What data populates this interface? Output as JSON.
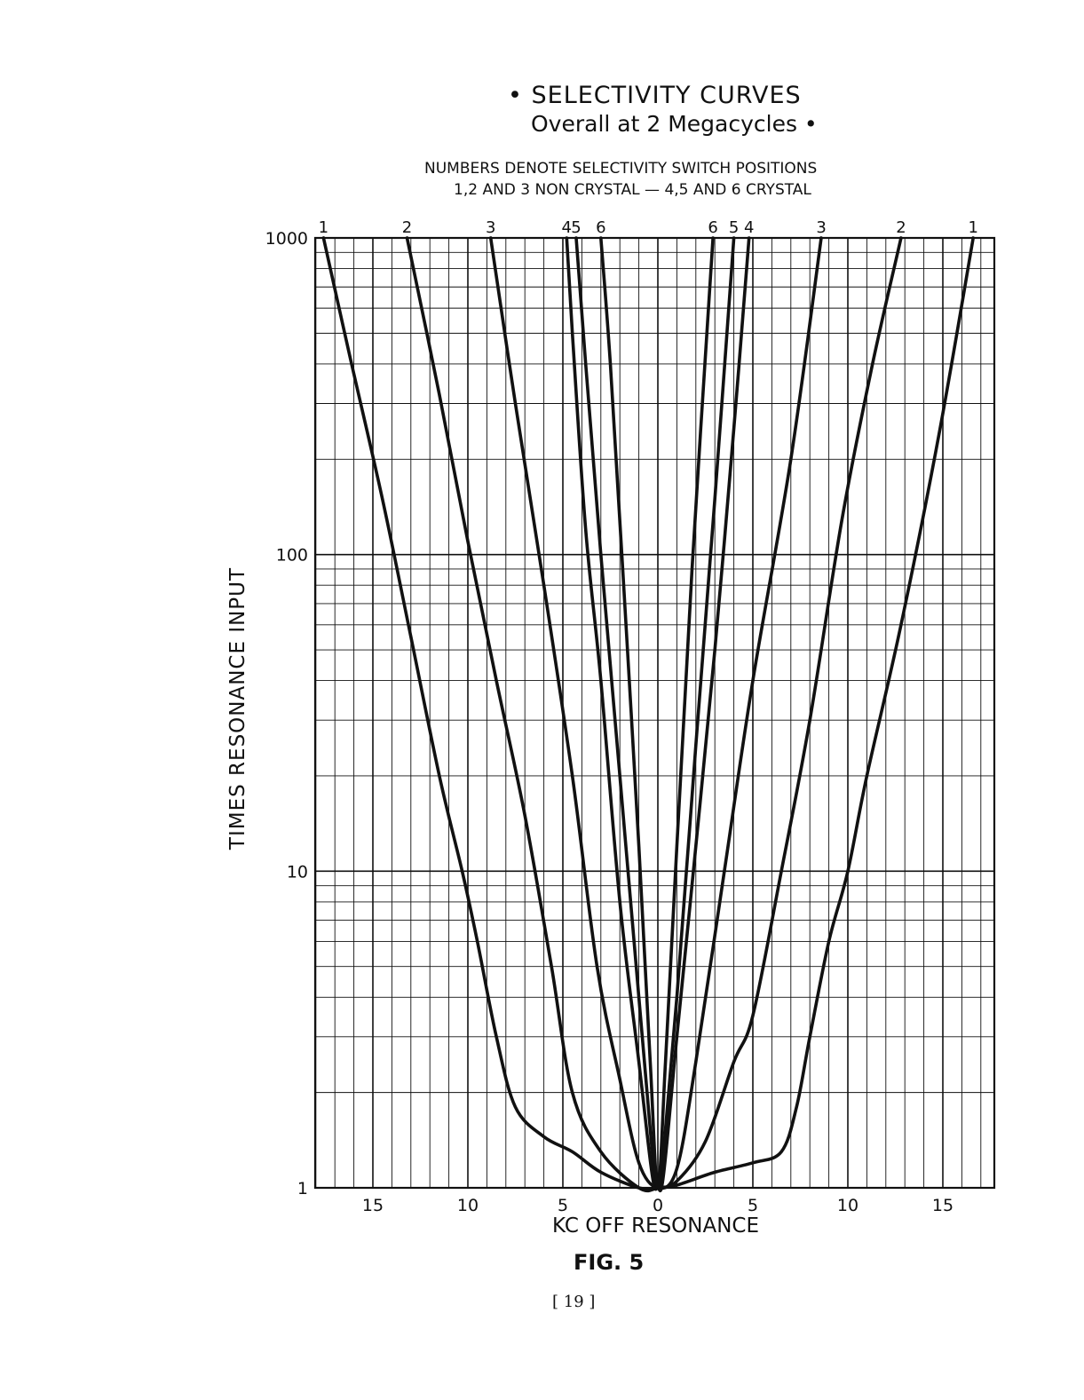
{
  "page": {
    "title_line1": "• SELECTIVITY  CURVES",
    "title_line2": "Overall  at  2  Megacycles •",
    "note_line1": "NUMBERS  DENOTE  SELECTIVITY  SWITCH  POSITIONS",
    "note_line2": "1,2 AND 3  NON CRYSTAL  —  4,5 AND 6  CRYSTAL",
    "figure_label": "FIG. 5",
    "page_number": "[ 19 ]"
  },
  "chart_data": {
    "type": "line",
    "title": "SELECTIVITY CURVES Overall at 2 Megacycles",
    "xlabel": "KC  OFF  RESONANCE",
    "ylabel": "TIMES  RESONANCE  INPUT",
    "xlim": [
      -18,
      18
    ],
    "ylim": [
      1,
      1000
    ],
    "y_scale": "log",
    "x_ticks": [
      {
        "value": -15,
        "label": "15"
      },
      {
        "value": -10,
        "label": "10"
      },
      {
        "value": -5,
        "label": "5"
      },
      {
        "value": 0,
        "label": "0"
      },
      {
        "value": 5,
        "label": "5"
      },
      {
        "value": 10,
        "label": "10"
      },
      {
        "value": 15,
        "label": "15"
      }
    ],
    "y_ticks": [
      {
        "value": 1,
        "label": "1"
      },
      {
        "value": 10,
        "label": "10"
      },
      {
        "value": 100,
        "label": "100"
      },
      {
        "value": 1000,
        "label": "1000"
      }
    ],
    "grid": true,
    "series": [
      {
        "name": "1",
        "points": [
          [
            -17.6,
            1000
          ],
          [
            -16.2,
            420
          ],
          [
            -14.5,
            150
          ],
          [
            -13,
            55
          ],
          [
            -11.5,
            20
          ],
          [
            -10.3,
            10
          ],
          [
            -9.5,
            6
          ],
          [
            -8.5,
            3
          ],
          [
            -7.5,
            1.8
          ],
          [
            -6,
            1.45
          ],
          [
            -4.5,
            1.3
          ],
          [
            -3,
            1.12
          ],
          [
            -1,
            1
          ],
          [
            0,
            1
          ],
          [
            1,
            1.02
          ],
          [
            3,
            1.12
          ],
          [
            5,
            1.2
          ],
          [
            6.5,
            1.3
          ],
          [
            7.3,
            1.8
          ],
          [
            8,
            3
          ],
          [
            9,
            6
          ],
          [
            10,
            10
          ],
          [
            11,
            20
          ],
          [
            12.8,
            60
          ],
          [
            14.8,
            240
          ],
          [
            16.6,
            1000
          ]
        ]
      },
      {
        "name": "2",
        "points": [
          [
            -13.2,
            1000
          ],
          [
            -11.5,
            320
          ],
          [
            -10,
            110
          ],
          [
            -8.5,
            40
          ],
          [
            -7,
            15
          ],
          [
            -5.6,
            5
          ],
          [
            -4.5,
            2
          ],
          [
            -3,
            1.3
          ],
          [
            -1,
            1
          ],
          [
            0,
            1
          ],
          [
            1,
            1.05
          ],
          [
            2.5,
            1.4
          ],
          [
            4,
            2.5
          ],
          [
            5,
            3.5
          ],
          [
            6.5,
            10
          ],
          [
            8,
            30
          ],
          [
            9.7,
            130
          ],
          [
            11.3,
            400
          ],
          [
            12.8,
            1000
          ]
        ]
      },
      {
        "name": "3",
        "points": [
          [
            -8.8,
            1000
          ],
          [
            -7.5,
            300
          ],
          [
            -6,
            80
          ],
          [
            -4.5,
            20
          ],
          [
            -3.2,
            5
          ],
          [
            -2,
            2.2
          ],
          [
            -1,
            1.2
          ],
          [
            0,
            1
          ],
          [
            1,
            1.15
          ],
          [
            2,
            2.5
          ],
          [
            3.5,
            10
          ],
          [
            5,
            40
          ],
          [
            7,
            200
          ],
          [
            8.6,
            1000
          ]
        ]
      },
      {
        "name": "4",
        "points": [
          [
            -4.8,
            1000
          ],
          [
            -4.5,
            500
          ],
          [
            -3.8,
            120
          ],
          [
            -3,
            40
          ],
          [
            -2,
            8
          ],
          [
            -1,
            2.5
          ],
          [
            -0.3,
            1.1
          ],
          [
            0,
            1
          ],
          [
            0.3,
            1.1
          ],
          [
            1,
            3
          ],
          [
            2,
            12
          ],
          [
            3,
            50
          ],
          [
            4,
            250
          ],
          [
            4.8,
            1000
          ]
        ]
      },
      {
        "name": "5",
        "points": [
          [
            -4.3,
            1000
          ],
          [
            -3.8,
            400
          ],
          [
            -3,
            100
          ],
          [
            -2,
            20
          ],
          [
            -1,
            4
          ],
          [
            -0.3,
            1.3
          ],
          [
            0,
            1
          ],
          [
            0.3,
            1.3
          ],
          [
            1,
            4
          ],
          [
            2,
            25
          ],
          [
            3,
            150
          ],
          [
            4,
            1000
          ]
        ]
      },
      {
        "name": "6",
        "points": [
          [
            -3.0,
            1000
          ],
          [
            -2.5,
            400
          ],
          [
            -1.8,
            80
          ],
          [
            -1,
            12
          ],
          [
            -0.4,
            2.5
          ],
          [
            0,
            1
          ],
          [
            0.4,
            2.5
          ],
          [
            1,
            12
          ],
          [
            1.8,
            90
          ],
          [
            2.9,
            1000
          ]
        ]
      }
    ],
    "curve_labels_top": [
      {
        "series": "1",
        "side": "left",
        "x": -17.6
      },
      {
        "series": "2",
        "side": "left",
        "x": -13.2
      },
      {
        "series": "3",
        "side": "left",
        "x": -8.8
      },
      {
        "series": "4",
        "side": "left",
        "x": -4.8
      },
      {
        "series": "5",
        "side": "left",
        "x": -4.3
      },
      {
        "series": "6",
        "side": "left",
        "x": -3.0
      },
      {
        "series": "6",
        "side": "right",
        "x": 2.9
      },
      {
        "series": "5",
        "side": "right",
        "x": 4.0
      },
      {
        "series": "4",
        "side": "right",
        "x": 4.8
      },
      {
        "series": "3",
        "side": "right",
        "x": 8.6
      },
      {
        "series": "2",
        "side": "right",
        "x": 12.8
      },
      {
        "series": "1",
        "side": "right",
        "x": 16.6
      }
    ]
  }
}
